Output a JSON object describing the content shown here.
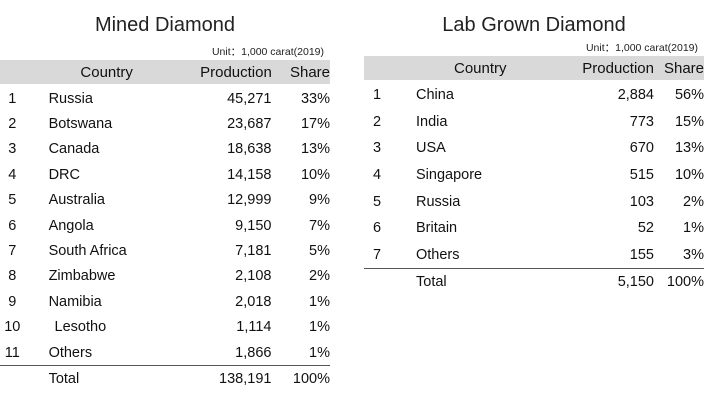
{
  "mined": {
    "title": "Mined Diamond",
    "unit": "Unit：1,000 carat(2019)",
    "headers": {
      "country": "Country",
      "production": "Production",
      "share": "Share"
    },
    "rows": [
      {
        "rank": "1",
        "country": "Russia",
        "production": "45,271",
        "share": "33%"
      },
      {
        "rank": "2",
        "country": "Botswana",
        "production": "23,687",
        "share": "17%"
      },
      {
        "rank": "3",
        "country": "Canada",
        "production": "18,638",
        "share": "13%"
      },
      {
        "rank": "4",
        "country": "DRC",
        "production": "14,158",
        "share": "10%"
      },
      {
        "rank": "5",
        "country": "Australia",
        "production": "12,999",
        "share": "9%"
      },
      {
        "rank": "6",
        "country": "Angola",
        "production": "9,150",
        "share": "7%"
      },
      {
        "rank": "7",
        "country": "South Africa",
        "production": "7,181",
        "share": "5%"
      },
      {
        "rank": "8",
        "country": "Zimbabwe",
        "production": "2,108",
        "share": "2%"
      },
      {
        "rank": "9",
        "country": "Namibia",
        "production": "2,018",
        "share": "1%"
      },
      {
        "rank": "10",
        "country": "Lesotho",
        "production": "1,114",
        "share": "1%"
      },
      {
        "rank": "11",
        "country": "Others",
        "production": "1,866",
        "share": "1%"
      }
    ],
    "total": {
      "label": "Total",
      "production": "138,191",
      "share": "100%"
    }
  },
  "lab": {
    "title": "Lab Grown Diamond",
    "unit": "Unit：1,000 carat(2019)",
    "headers": {
      "country": "Country",
      "production": "Production",
      "share": "Share"
    },
    "rows": [
      {
        "rank": "1",
        "country": "China",
        "production": "2,884",
        "share": "56%"
      },
      {
        "rank": "2",
        "country": "India",
        "production": "773",
        "share": "15%"
      },
      {
        "rank": "3",
        "country": "USA",
        "production": "670",
        "share": "13%"
      },
      {
        "rank": "4",
        "country": "Singapore",
        "production": "515",
        "share": "10%"
      },
      {
        "rank": "5",
        "country": "Russia",
        "production": "103",
        "share": "2%"
      },
      {
        "rank": "6",
        "country": "Britain",
        "production": "52",
        "share": "1%"
      },
      {
        "rank": "7",
        "country": "Others",
        "production": "155",
        "share": "3%"
      }
    ],
    "total": {
      "label": "Total",
      "production": "5,150",
      "share": "100%"
    }
  }
}
